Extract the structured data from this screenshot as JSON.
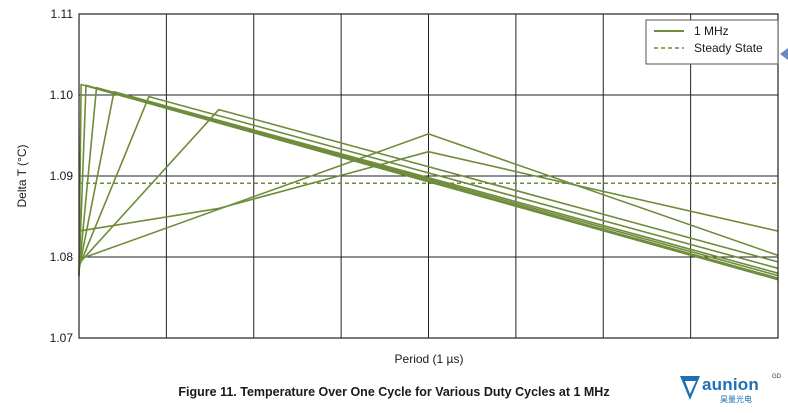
{
  "chart_data": {
    "type": "line",
    "title": "Figure 11. Temperature Over One Cycle for Various Duty Cycles at 1 MHz",
    "xlabel": "Period (1 µs)",
    "ylabel": "Delta T (°C)",
    "xlim": [
      0,
      1
    ],
    "ylim": [
      1.07,
      1.11
    ],
    "yticks": [
      "1.11",
      "1.10",
      "1.09",
      "1.08",
      "1.07"
    ],
    "ytick_values": [
      1.11,
      1.1,
      1.09,
      1.08,
      1.07
    ],
    "x_gridlines": 8,
    "grid": true,
    "legend_position": "top-right",
    "legend": [
      {
        "label": "1 MHz",
        "style": "solid",
        "color": "#6e8c3a"
      },
      {
        "label": "Steady State",
        "style": "dashed",
        "color": "#6e8c3a"
      }
    ],
    "steady_state": 1.0891,
    "series": [
      {
        "values": [
          [
            0,
            1.0776
          ],
          [
            0.003,
            1.1013
          ],
          [
            1,
            1.0772
          ]
        ]
      },
      {
        "values": [
          [
            0,
            1.0778
          ],
          [
            0.01,
            1.1012
          ],
          [
            1,
            1.0774
          ]
        ]
      },
      {
        "values": [
          [
            0,
            1.0781
          ],
          [
            0.025,
            1.1009
          ],
          [
            1,
            1.0777
          ]
        ]
      },
      {
        "values": [
          [
            0,
            1.0785
          ],
          [
            0.05,
            1.1004
          ],
          [
            1,
            1.078
          ]
        ]
      },
      {
        "values": [
          [
            0,
            1.0788
          ],
          [
            0.1,
            1.0998
          ],
          [
            1,
            1.0786
          ]
        ]
      },
      {
        "values": [
          [
            0,
            1.0792
          ],
          [
            0.2,
            1.0982
          ],
          [
            1,
            1.0794
          ]
        ]
      },
      {
        "values": [
          [
            0,
            1.0797
          ],
          [
            0.5,
            1.0952
          ],
          [
            1,
            1.0802
          ]
        ]
      },
      {
        "values": [
          [
            0,
            1.0832
          ],
          [
            0.2,
            1.086
          ],
          [
            0.5,
            1.093
          ],
          [
            1,
            1.0832
          ]
        ]
      }
    ]
  },
  "logo": {
    "name": "aunion",
    "superscript": "GD",
    "subtitle": "昊量光电"
  }
}
